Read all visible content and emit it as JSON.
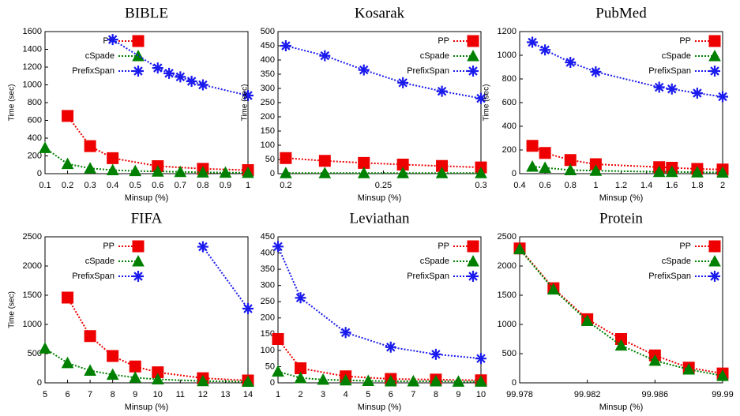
{
  "chart_data": [
    {
      "type": "line",
      "title": "BIBLE",
      "xlabel": "Minsup (%)",
      "ylabel": "Time (sec)",
      "xlim": [
        0.1,
        1
      ],
      "xticks": [
        0.1,
        0.2,
        0.3,
        0.4,
        0.5,
        0.6,
        0.7,
        0.8,
        0.9,
        1
      ],
      "ylim": [
        0,
        1600
      ],
      "yticks": [
        0,
        200,
        400,
        600,
        800,
        1000,
        1200,
        1400,
        1600
      ],
      "legend": "upper left",
      "series": [
        {
          "name": "PP",
          "color": "#ee0000",
          "marker": "square",
          "x": [
            0.2,
            0.3,
            0.4,
            0.6,
            0.8,
            1
          ],
          "values": [
            650,
            310,
            175,
            85,
            55,
            40
          ]
        },
        {
          "name": "cSpade",
          "color": "#008000",
          "marker": "triangle",
          "x": [
            0.1,
            0.2,
            0.3,
            0.4,
            0.5,
            0.6,
            0.7,
            0.8,
            0.9,
            1
          ],
          "values": [
            290,
            110,
            60,
            40,
            30,
            25,
            20,
            15,
            12,
            10
          ]
        },
        {
          "name": "PrefixSpan",
          "color": "#1a1aee",
          "marker": "star",
          "x": [
            0.4,
            0.6,
            0.65,
            0.7,
            0.75,
            0.8,
            1
          ],
          "values": [
            1510,
            1190,
            1130,
            1090,
            1040,
            1000,
            880
          ]
        }
      ]
    },
    {
      "type": "line",
      "title": "Kosarak",
      "xlabel": "Minsup (%)",
      "ylabel": "Time (sec)",
      "xlim": [
        0.196,
        0.3
      ],
      "xticks": [
        0.2,
        0.25,
        0.3
      ],
      "ylim": [
        0,
        500
      ],
      "yticks": [
        0,
        50,
        100,
        150,
        200,
        250,
        300,
        350,
        400,
        450,
        500
      ],
      "legend": "upper right",
      "series": [
        {
          "name": "PP",
          "color": "#ee0000",
          "marker": "square",
          "x": [
            0.2,
            0.22,
            0.24,
            0.26,
            0.28,
            0.3
          ],
          "values": [
            55,
            45,
            38,
            32,
            27,
            22
          ]
        },
        {
          "name": "cSpade",
          "color": "#008000",
          "marker": "triangle",
          "x": [
            0.2,
            0.22,
            0.24,
            0.26,
            0.28,
            0.3
          ],
          "values": [
            2,
            2,
            2,
            2,
            2,
            2
          ]
        },
        {
          "name": "PrefixSpan",
          "color": "#1a1aee",
          "marker": "star",
          "x": [
            0.2,
            0.22,
            0.24,
            0.26,
            0.28,
            0.3
          ],
          "values": [
            450,
            415,
            365,
            320,
            290,
            265
          ]
        }
      ]
    },
    {
      "type": "line",
      "title": "PubMed",
      "xlabel": "Minsup (%)",
      "ylabel": "Time (sec)",
      "xlim": [
        0.4,
        2
      ],
      "xticks": [
        0.4,
        0.6,
        0.8,
        1,
        1.2,
        1.4,
        1.6,
        1.8,
        2
      ],
      "ylim": [
        0,
        1200
      ],
      "yticks": [
        0,
        200,
        400,
        600,
        800,
        1000,
        1200
      ],
      "legend": "upper right",
      "series": [
        {
          "name": "PP",
          "color": "#ee0000",
          "marker": "square",
          "x": [
            0.5,
            0.6,
            0.8,
            1,
            1.5,
            1.6,
            1.8,
            2
          ],
          "values": [
            235,
            175,
            115,
            80,
            55,
            50,
            40,
            35
          ]
        },
        {
          "name": "cSpade",
          "color": "#008000",
          "marker": "triangle",
          "x": [
            0.5,
            0.6,
            0.8,
            1,
            1.5,
            1.6,
            1.8,
            2
          ],
          "values": [
            60,
            50,
            30,
            25,
            15,
            15,
            12,
            10
          ]
        },
        {
          "name": "PrefixSpan",
          "color": "#1a1aee",
          "marker": "star",
          "x": [
            0.5,
            0.6,
            0.8,
            1,
            1.5,
            1.6,
            1.8,
            2
          ],
          "values": [
            1110,
            1045,
            940,
            860,
            730,
            715,
            680,
            650
          ]
        }
      ]
    },
    {
      "type": "line",
      "title": "FIFA",
      "xlabel": "Minsup (%)",
      "ylabel": "Time (sec)",
      "xlim": [
        5,
        14
      ],
      "xticks": [
        5,
        6,
        7,
        8,
        9,
        10,
        11,
        12,
        13,
        14
      ],
      "ylim": [
        0,
        2500
      ],
      "yticks": [
        0,
        500,
        1000,
        1500,
        2000,
        2500
      ],
      "legend": "upper left",
      "series": [
        {
          "name": "PP",
          "color": "#ee0000",
          "marker": "square",
          "x": [
            6,
            7,
            8,
            9,
            10,
            12,
            14
          ],
          "values": [
            1460,
            800,
            460,
            280,
            180,
            80,
            40
          ]
        },
        {
          "name": "cSpade",
          "color": "#008000",
          "marker": "triangle",
          "x": [
            5,
            6,
            7,
            8,
            9,
            10,
            12,
            14
          ],
          "values": [
            590,
            340,
            210,
            140,
            90,
            60,
            30,
            20
          ]
        },
        {
          "name": "PrefixSpan",
          "color": "#1a1aee",
          "marker": "star",
          "x": [
            12,
            14
          ],
          "values": [
            2330,
            1270
          ]
        }
      ]
    },
    {
      "type": "line",
      "title": "Leviathan",
      "xlabel": "Minsup (%)",
      "xlim": [
        1,
        10
      ],
      "xticks": [
        1,
        2,
        3,
        4,
        5,
        6,
        7,
        8,
        9,
        10
      ],
      "ylim": [
        0,
        450
      ],
      "yticks": [
        0,
        50,
        100,
        150,
        200,
        250,
        300,
        350,
        400,
        450
      ],
      "legend": "upper right",
      "series": [
        {
          "name": "PP",
          "color": "#ee0000",
          "marker": "square",
          "x": [
            1,
            2,
            4,
            6,
            8,
            10
          ],
          "values": [
            135,
            45,
            20,
            12,
            10,
            8
          ]
        },
        {
          "name": "cSpade",
          "color": "#008000",
          "marker": "triangle",
          "x": [
            1,
            2,
            3,
            4,
            5,
            6,
            7,
            8,
            9,
            10
          ],
          "values": [
            35,
            15,
            10,
            8,
            6,
            5,
            5,
            5,
            4,
            4
          ]
        },
        {
          "name": "PrefixSpan",
          "color": "#1a1aee",
          "marker": "star",
          "x": [
            1,
            2,
            4,
            6,
            8,
            10
          ],
          "values": [
            420,
            262,
            155,
            110,
            88,
            75
          ]
        }
      ]
    },
    {
      "type": "line",
      "title": "Protein",
      "xlabel": "Minsup (%)",
      "xlim": [
        99.978,
        99.99
      ],
      "xticks": [
        99.978,
        99.982,
        99.986,
        99.99
      ],
      "ylim": [
        0,
        2500
      ],
      "yticks": [
        0,
        500,
        1000,
        1500,
        2000,
        2500
      ],
      "legend": "upper right",
      "series": [
        {
          "name": "PP",
          "color": "#ee0000",
          "marker": "square",
          "x": [
            99.978,
            99.98,
            99.982,
            99.984,
            99.986,
            99.988,
            99.99
          ],
          "values": [
            2300,
            1620,
            1090,
            750,
            470,
            260,
            160
          ]
        },
        {
          "name": "cSpade",
          "color": "#008000",
          "marker": "triangle",
          "x": [
            99.978,
            99.98,
            99.982,
            99.984,
            99.986,
            99.988,
            99.99
          ],
          "values": [
            2290,
            1600,
            1060,
            640,
            380,
            230,
            120
          ]
        },
        {
          "name": "PrefixSpan",
          "color": "#1a1aee",
          "marker": "star",
          "x": [],
          "values": []
        }
      ]
    }
  ]
}
